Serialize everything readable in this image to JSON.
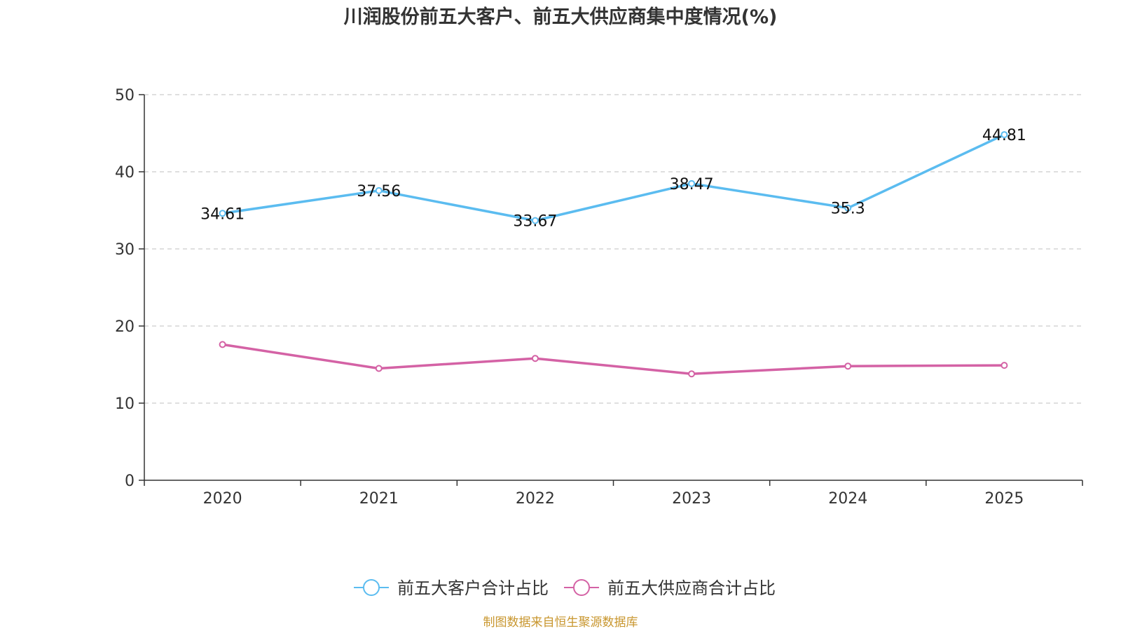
{
  "chart_data": {
    "type": "line",
    "title": "川润股份前五大客户、前五大供应商集中度情况(%)",
    "categories": [
      "2020",
      "2021",
      "2022",
      "2023",
      "2024",
      "2025"
    ],
    "ylim": [
      0,
      50
    ],
    "yticks": [
      0,
      10,
      20,
      30,
      40,
      50
    ],
    "grid": true,
    "legend_position": "bottom-center",
    "series": [
      {
        "name": "前五大客户合计占比",
        "color": "#5bbcf0",
        "values": [
          34.61,
          37.56,
          33.67,
          38.47,
          35.3,
          44.81
        ],
        "labels": [
          "34.61",
          "37.56",
          "33.67",
          "38.47",
          "35.3",
          "44.81"
        ],
        "show_labels": true
      },
      {
        "name": "前五大供应商合计占比",
        "color": "#d462a5",
        "values": [
          17.6,
          14.5,
          15.8,
          13.8,
          14.8,
          14.9
        ],
        "labels": [],
        "show_labels": false
      }
    ]
  },
  "source": {
    "text": "制图数据来自恒生聚源数据库",
    "color": "#c8962e"
  }
}
